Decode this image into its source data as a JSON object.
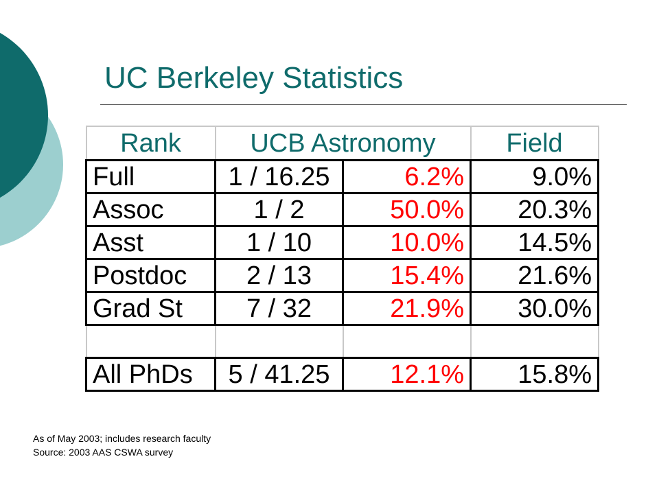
{
  "slide": {
    "title": "UC Berkeley Statistics",
    "accent_color": "#0f6b6b",
    "decor_colors": {
      "dark_circle": "#0f6b6b",
      "light_circle": "#9ccfcf"
    }
  },
  "table": {
    "headers": {
      "rank": "Rank",
      "ucb": "UCB Astronomy",
      "field": "Field"
    },
    "rows": [
      {
        "rank": "Full",
        "count": "1 / 16.25",
        "pct": "6.2%",
        "field": "9.0%"
      },
      {
        "rank": "Assoc",
        "count": "1 / 2",
        "pct": "50.0%",
        "field": "20.3%"
      },
      {
        "rank": "Asst",
        "count": "1 / 10",
        "pct": "10.0%",
        "field": "14.5%"
      },
      {
        "rank": "Postdoc",
        "count": "2 / 13",
        "pct": "15.4%",
        "field": "21.6%"
      },
      {
        "rank": "Grad St",
        "count": "7 / 32",
        "pct": "21.9%",
        "field": "30.0%"
      }
    ],
    "total": {
      "rank": "All PhDs",
      "count": "5 / 41.25",
      "pct": "12.1%",
      "field": "15.8%"
    },
    "pct_color": "#ff0000"
  },
  "notes": [
    "As of May 2003; includes research faculty",
    "Source: 2003 AAS CSWA survey"
  ]
}
